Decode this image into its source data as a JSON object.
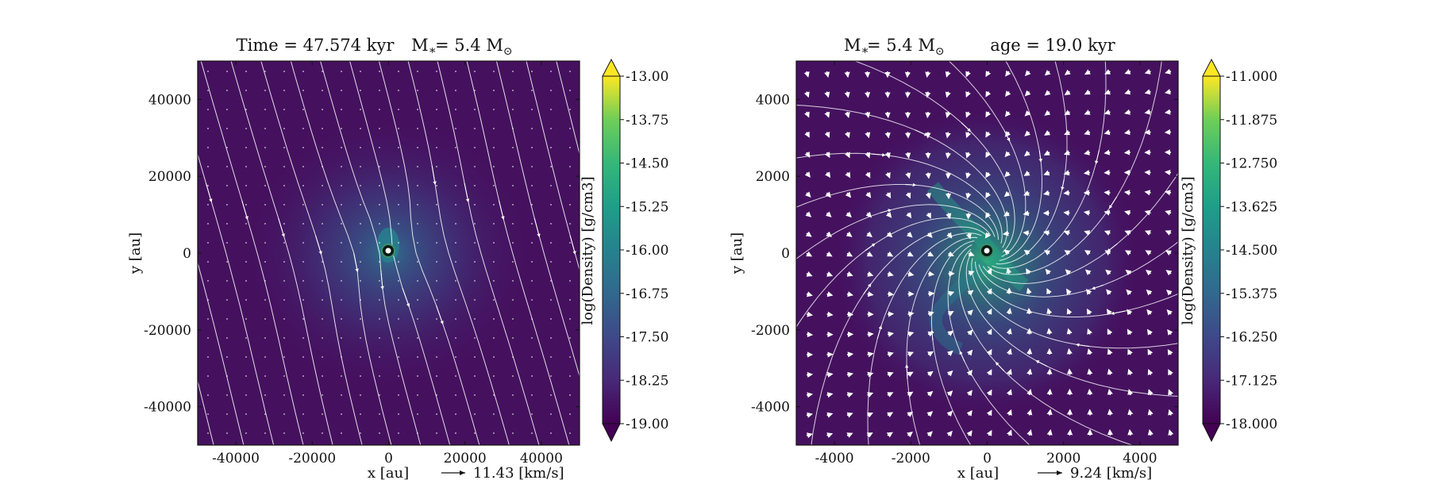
{
  "chart_data": [
    {
      "type": "heatmap",
      "title": "Time = 47.574 kyr    M$_*$ = 5.4 M$_\\odot$",
      "title_parts": {
        "left": "Time = 47.574 kyr",
        "right": "= 5.4 M"
      },
      "xlabel": "x [au]",
      "ylabel": "y [au]",
      "xlim": [
        -50000,
        50000
      ],
      "ylim": [
        -50000,
        50000
      ],
      "xticks": [
        "-40000",
        "-20000",
        "0",
        "20000",
        "40000"
      ],
      "xtick_values": [
        -40000,
        -20000,
        0,
        20000,
        40000
      ],
      "yticks": [
        "40000",
        "20000",
        "0",
        "-20000",
        "-40000"
      ],
      "ytick_values": [
        40000,
        20000,
        0,
        -20000,
        -40000
      ],
      "colorbar": {
        "label": "log(Density) [g/cm3]",
        "min": -19.0,
        "max": -13.0,
        "ticks": [
          "-13.00",
          "-13.75",
          "-14.50",
          "-15.25",
          "-16.00",
          "-16.75",
          "-17.50",
          "-18.25",
          "-19.00"
        ],
        "extend": "both",
        "colormap": "viridis"
      },
      "velocity_key": {
        "value": 11.43,
        "label": "11.43 [km/s]"
      },
      "sink": {
        "x": 0,
        "y": 0
      },
      "background_colormap_peak": -15.8,
      "stream_style": "near-uniform flow from upper-left to lower-right, converging toward center"
    },
    {
      "type": "heatmap",
      "title": "M$_*$ = 5.4 M$_\\odot$    age = 19.0 kyr",
      "title_parts": {
        "left": "= 5.4 M",
        "right": "age = 19.0 kyr"
      },
      "xlabel": "x [au]",
      "ylabel": "y [au]",
      "xlim": [
        -5000,
        5000
      ],
      "ylim": [
        -5000,
        5000
      ],
      "xticks": [
        "-4000",
        "-2000",
        "0",
        "2000",
        "4000"
      ],
      "xtick_values": [
        -4000,
        -2000,
        0,
        2000,
        4000
      ],
      "yticks": [
        "4000",
        "2000",
        "0",
        "-2000",
        "-4000"
      ],
      "ytick_values": [
        4000,
        2000,
        0,
        -2000,
        -4000
      ],
      "colorbar": {
        "label": "log(Density) [g/cm3]",
        "min": -18.0,
        "max": -11.0,
        "ticks": [
          "-11.000",
          "-11.875",
          "-12.750",
          "-13.625",
          "-14.500",
          "-15.375",
          "-16.250",
          "-17.125",
          "-18.000"
        ],
        "extend": "both",
        "colormap": "viridis"
      },
      "velocity_key": {
        "value": 9.24,
        "label": "9.24 [km/s]"
      },
      "sink": {
        "x": 0,
        "y": 0
      },
      "stream_style": "infall from all sides with spiral structure around center"
    }
  ],
  "colors": {
    "background_low": "#440154",
    "mid": "#3b528b",
    "high": "#21918c",
    "peak": "#fde725",
    "streamline": "#ffffff"
  }
}
